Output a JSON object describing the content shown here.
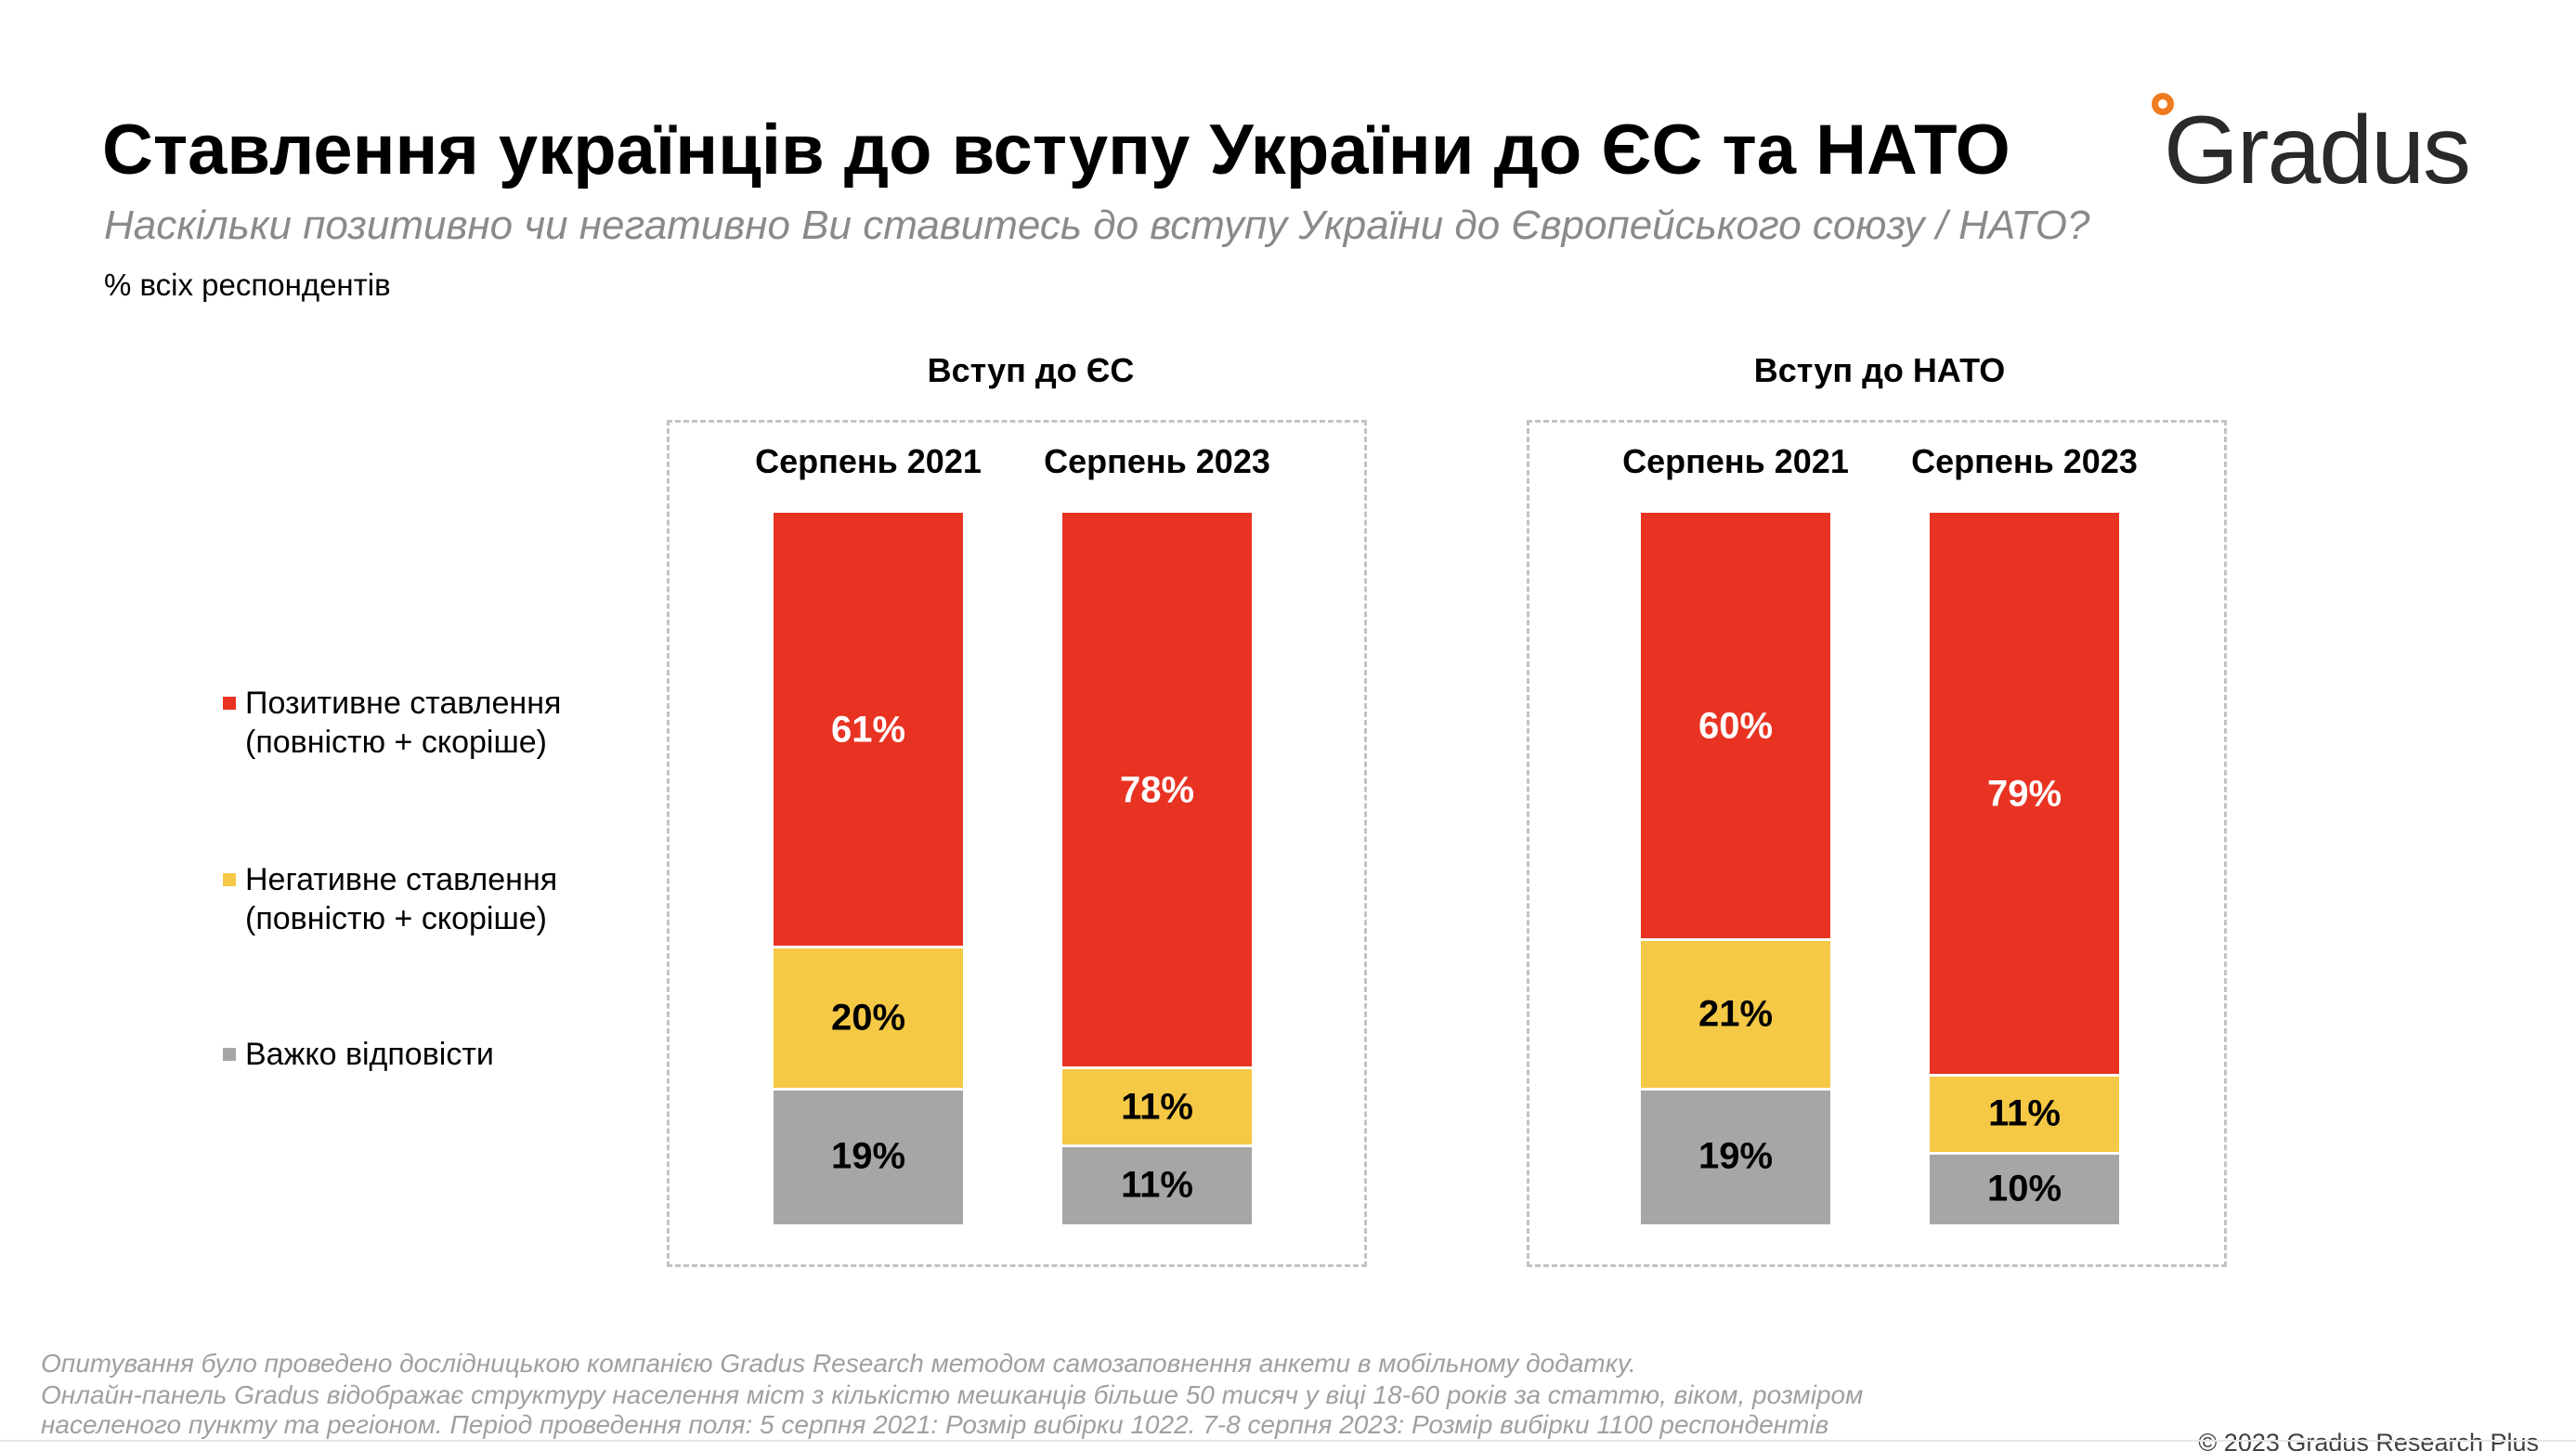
{
  "header": {
    "title": "Ставлення українців до вступу України до ЄС та НАТО",
    "logo_text": "Gradus",
    "subtitle": "Наскільки позитивно чи негативно Ви ставитесь до вступу України до Європейського союзу / НАТО?",
    "units": "% всіх респондентів"
  },
  "colors": {
    "positive": "#E83323",
    "negative": "#F5C945",
    "hard": "#A6A6A6",
    "logo_accent": "#F07A1E"
  },
  "legend": [
    {
      "key": "positive",
      "line1": "Позитивне ставлення",
      "line2": "(повністю + скоріше)"
    },
    {
      "key": "negative",
      "line1": "Негативне ставлення",
      "line2": "(повністю + скоріше)"
    },
    {
      "key": "hard",
      "line1": "Важко відповісти",
      "line2": ""
    }
  ],
  "chart_data": {
    "type": "bar",
    "stacked": true,
    "normalized_percent": true,
    "series_keys": [
      "positive",
      "negative",
      "hard"
    ],
    "series_names": [
      "Позитивне ставлення (повністю + скоріше)",
      "Негативне ставлення (повністю + скоріше)",
      "Важко відповісти"
    ],
    "groups": [
      {
        "title": "Вступ до ЄС",
        "bars": [
          {
            "period": "Серпень 2021",
            "positive": 61,
            "negative": 20,
            "hard": 19,
            "labels": {
              "positive": "61%",
              "negative": "20%",
              "hard": "19%"
            }
          },
          {
            "period": "Серпень 2023",
            "positive": 78,
            "negative": 11,
            "hard": 11,
            "labels": {
              "positive": "78%",
              "negative": "11%",
              "hard": "11%"
            }
          }
        ]
      },
      {
        "title": "Вступ до НАТО",
        "bars": [
          {
            "period": "Серпень 2021",
            "positive": 60,
            "negative": 21,
            "hard": 19,
            "labels": {
              "positive": "60%",
              "negative": "21%",
              "hard": "19%"
            }
          },
          {
            "period": "Серпень 2023",
            "positive": 79,
            "negative": 11,
            "hard": 10,
            "labels": {
              "positive": "79%",
              "negative": "11%",
              "hard": "10%"
            }
          }
        ]
      }
    ]
  },
  "footer": {
    "note_lines": [
      "Опитування було проведено дослідницькою компанією Gradus Research методом самозаповнення анкети в мобільному додатку.",
      "Онлайн-панель Gradus відображає структуру населення міст з кількістю мешканців більше 50 тисяч у віці 18-60 років за статтю, віком, розміром",
      "населеного пункту та регіоном. Період проведення поля: 5 серпня 2021: Розмір вибірки 1022. 7-8 серпня 2023: Розмір вибірки 1100 респондентів"
    ],
    "copyright": "© 2023 Gradus Research Plus"
  }
}
